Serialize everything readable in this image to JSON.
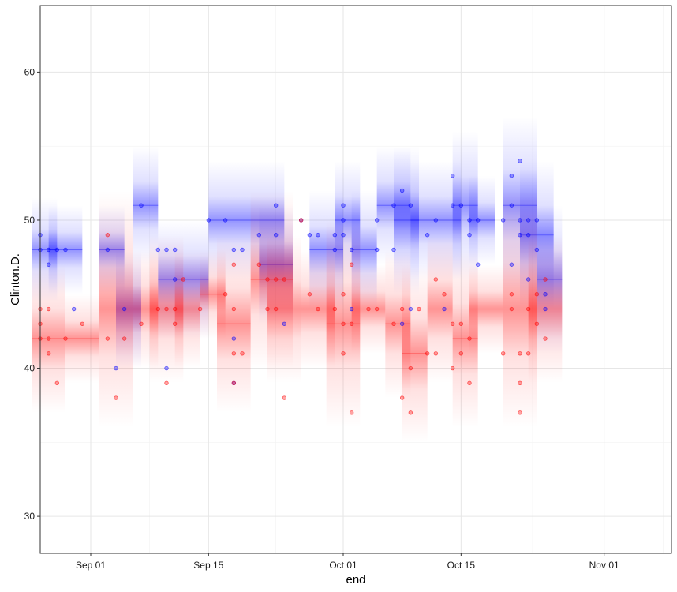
{
  "chart_data": {
    "type": "scatter",
    "title": "",
    "xlabel": "end",
    "ylabel": "Clinton.D.",
    "x_ticks": [
      "Sep 01",
      "Sep 15",
      "Oct 01",
      "Oct 15",
      "Nov 01"
    ],
    "x_tick_dates": [
      "2016-09-01",
      "2016-09-15",
      "2016-10-01",
      "2016-10-15",
      "2016-11-01"
    ],
    "xlim": [
      "2016-08-26",
      "2016-11-09"
    ],
    "y_ticks": [
      30,
      40,
      50,
      60
    ],
    "ylim": [
      27.5,
      64.5
    ],
    "grid": true,
    "legend": "none",
    "colors": {
      "blue": "#0000ff",
      "red": "#ff0000",
      "panel_border": "#333333",
      "grid_major": "#e6e6e6",
      "grid_minor": "#f2f2f2"
    },
    "series": [
      {
        "color": "#0000ff",
        "points": [
          [
            "2016-08-26",
            49
          ],
          [
            "2016-08-26",
            48
          ],
          [
            "2016-08-27",
            48
          ],
          [
            "2016-08-27",
            47
          ],
          [
            "2016-08-28",
            48
          ],
          [
            "2016-08-29",
            48
          ],
          [
            "2016-08-30",
            44
          ],
          [
            "2016-09-03",
            48
          ],
          [
            "2016-09-04",
            40
          ],
          [
            "2016-09-05",
            44
          ],
          [
            "2016-09-07",
            51
          ],
          [
            "2016-09-09",
            48
          ],
          [
            "2016-09-10",
            40
          ],
          [
            "2016-09-10",
            48
          ],
          [
            "2016-09-11",
            46
          ],
          [
            "2016-09-11",
            48
          ],
          [
            "2016-09-15",
            50
          ],
          [
            "2016-09-17",
            50
          ],
          [
            "2016-09-18",
            39
          ],
          [
            "2016-09-18",
            42
          ],
          [
            "2016-09-18",
            48
          ],
          [
            "2016-09-19",
            48
          ],
          [
            "2016-09-21",
            49
          ],
          [
            "2016-09-23",
            51
          ],
          [
            "2016-09-23",
            49
          ],
          [
            "2016-09-24",
            43
          ],
          [
            "2016-09-26",
            50
          ],
          [
            "2016-09-27",
            49
          ],
          [
            "2016-09-28",
            49
          ],
          [
            "2016-09-30",
            48
          ],
          [
            "2016-09-30",
            49
          ],
          [
            "2016-10-01",
            50
          ],
          [
            "2016-10-01",
            49
          ],
          [
            "2016-10-01",
            51
          ],
          [
            "2016-10-02",
            44
          ],
          [
            "2016-10-02",
            48
          ],
          [
            "2016-10-05",
            50
          ],
          [
            "2016-10-05",
            48
          ],
          [
            "2016-10-07",
            48
          ],
          [
            "2016-10-07",
            51
          ],
          [
            "2016-10-08",
            52
          ],
          [
            "2016-10-08",
            43
          ],
          [
            "2016-10-09",
            51
          ],
          [
            "2016-10-09",
            44
          ],
          [
            "2016-10-11",
            49
          ],
          [
            "2016-10-12",
            50
          ],
          [
            "2016-10-13",
            44
          ],
          [
            "2016-10-14",
            53
          ],
          [
            "2016-10-14",
            51
          ],
          [
            "2016-10-15",
            51
          ],
          [
            "2016-10-16",
            50
          ],
          [
            "2016-10-16",
            49
          ],
          [
            "2016-10-17",
            47
          ],
          [
            "2016-10-17",
            50
          ],
          [
            "2016-10-20",
            50
          ],
          [
            "2016-10-21",
            53
          ],
          [
            "2016-10-21",
            51
          ],
          [
            "2016-10-22",
            54
          ],
          [
            "2016-10-22",
            49
          ],
          [
            "2016-10-22",
            50
          ],
          [
            "2016-10-23",
            50
          ],
          [
            "2016-10-23",
            49
          ],
          [
            "2016-10-24",
            48
          ],
          [
            "2016-10-24",
            50
          ],
          [
            "2016-10-25",
            45
          ],
          [
            "2016-10-25",
            44
          ],
          [
            "2016-10-23",
            46
          ],
          [
            "2016-10-21",
            47
          ]
        ],
        "bands": [
          [
            "2016-08-25",
            "2016-08-28",
            48,
            3.5
          ],
          [
            "2016-08-27",
            "2016-08-31",
            48,
            3
          ],
          [
            "2016-09-02",
            "2016-09-05",
            48,
            3
          ],
          [
            "2016-09-04",
            "2016-09-07",
            44,
            4
          ],
          [
            "2016-09-06",
            "2016-09-09",
            51,
            4
          ],
          [
            "2016-09-09",
            "2016-09-12",
            46,
            4
          ],
          [
            "2016-09-12",
            "2016-09-15",
            46,
            4
          ],
          [
            "2016-09-15",
            "2016-09-19",
            50,
            4
          ],
          [
            "2016-09-19",
            "2016-09-24",
            50,
            4
          ],
          [
            "2016-09-21",
            "2016-09-25",
            47,
            4
          ],
          [
            "2016-09-27",
            "2016-10-01",
            48,
            4
          ],
          [
            "2016-09-30",
            "2016-10-03",
            50,
            4
          ],
          [
            "2016-10-02",
            "2016-10-05",
            48,
            4
          ],
          [
            "2016-10-05",
            "2016-10-09",
            51,
            4
          ],
          [
            "2016-10-07",
            "2016-10-10",
            50,
            5
          ],
          [
            "2016-10-09",
            "2016-10-12",
            50,
            4
          ],
          [
            "2016-10-12",
            "2016-10-15",
            50,
            4
          ],
          [
            "2016-10-14",
            "2016-10-17",
            51,
            5
          ],
          [
            "2016-10-16",
            "2016-10-19",
            50,
            3
          ],
          [
            "2016-10-20",
            "2016-10-24",
            51,
            6
          ],
          [
            "2016-10-22",
            "2016-10-26",
            49,
            5
          ],
          [
            "2016-10-24",
            "2016-10-27",
            46,
            5
          ]
        ]
      },
      {
        "color": "#ff0000",
        "points": [
          [
            "2016-08-26",
            44
          ],
          [
            "2016-08-26",
            43
          ],
          [
            "2016-08-26",
            42
          ],
          [
            "2016-08-27",
            42
          ],
          [
            "2016-08-27",
            44
          ],
          [
            "2016-08-27",
            41
          ],
          [
            "2016-08-28",
            39
          ],
          [
            "2016-08-29",
            42
          ],
          [
            "2016-08-31",
            43
          ],
          [
            "2016-09-03",
            49
          ],
          [
            "2016-09-03",
            42
          ],
          [
            "2016-09-04",
            38
          ],
          [
            "2016-09-05",
            42
          ],
          [
            "2016-09-07",
            43
          ],
          [
            "2016-09-09",
            44
          ],
          [
            "2016-09-10",
            44
          ],
          [
            "2016-09-10",
            39
          ],
          [
            "2016-09-11",
            43
          ],
          [
            "2016-09-11",
            44
          ],
          [
            "2016-09-12",
            46
          ],
          [
            "2016-09-14",
            44
          ],
          [
            "2016-09-17",
            45
          ],
          [
            "2016-09-18",
            47
          ],
          [
            "2016-09-18",
            44
          ],
          [
            "2016-09-18",
            41
          ],
          [
            "2016-09-18",
            39
          ],
          [
            "2016-09-19",
            41
          ],
          [
            "2016-09-21",
            47
          ],
          [
            "2016-09-22",
            46
          ],
          [
            "2016-09-22",
            44
          ],
          [
            "2016-09-23",
            46
          ],
          [
            "2016-09-23",
            44
          ],
          [
            "2016-09-24",
            38
          ],
          [
            "2016-09-24",
            46
          ],
          [
            "2016-09-26",
            50
          ],
          [
            "2016-09-27",
            45
          ],
          [
            "2016-09-28",
            44
          ],
          [
            "2016-09-30",
            44
          ],
          [
            "2016-10-01",
            41
          ],
          [
            "2016-10-01",
            43
          ],
          [
            "2016-10-01",
            45
          ],
          [
            "2016-10-02",
            47
          ],
          [
            "2016-10-02",
            43
          ],
          [
            "2016-10-02",
            37
          ],
          [
            "2016-10-04",
            44
          ],
          [
            "2016-10-05",
            44
          ],
          [
            "2016-10-07",
            43
          ],
          [
            "2016-10-08",
            38
          ],
          [
            "2016-10-08",
            44
          ],
          [
            "2016-10-09",
            40
          ],
          [
            "2016-10-09",
            37
          ],
          [
            "2016-10-10",
            44
          ],
          [
            "2016-10-11",
            41
          ],
          [
            "2016-10-12",
            46
          ],
          [
            "2016-10-12",
            41
          ],
          [
            "2016-10-13",
            45
          ],
          [
            "2016-10-14",
            43
          ],
          [
            "2016-10-14",
            40
          ],
          [
            "2016-10-15",
            41
          ],
          [
            "2016-10-15",
            43
          ],
          [
            "2016-10-16",
            39
          ],
          [
            "2016-10-16",
            42
          ],
          [
            "2016-10-20",
            41
          ],
          [
            "2016-10-21",
            45
          ],
          [
            "2016-10-21",
            44
          ],
          [
            "2016-10-22",
            41
          ],
          [
            "2016-10-22",
            39
          ],
          [
            "2016-10-22",
            37
          ],
          [
            "2016-10-23",
            41
          ],
          [
            "2016-10-24",
            45
          ],
          [
            "2016-10-24",
            43
          ],
          [
            "2016-10-25",
            46
          ],
          [
            "2016-10-25",
            42
          ],
          [
            "2016-10-23",
            44
          ]
        ],
        "bands": [
          [
            "2016-08-25",
            "2016-08-29",
            42,
            5
          ],
          [
            "2016-08-29",
            "2016-09-02",
            42,
            3
          ],
          [
            "2016-09-02",
            "2016-09-06",
            44,
            8
          ],
          [
            "2016-09-06",
            "2016-09-09",
            44,
            4
          ],
          [
            "2016-09-08",
            "2016-09-12",
            44,
            5
          ],
          [
            "2016-09-11",
            "2016-09-14",
            44,
            4
          ],
          [
            "2016-09-14",
            "2016-09-17",
            45,
            3
          ],
          [
            "2016-09-16",
            "2016-09-20",
            43,
            6
          ],
          [
            "2016-09-20",
            "2016-09-25",
            46,
            6
          ],
          [
            "2016-09-22",
            "2016-09-26",
            44,
            5
          ],
          [
            "2016-09-26",
            "2016-09-30",
            44,
            4
          ],
          [
            "2016-09-29",
            "2016-10-03",
            43,
            7
          ],
          [
            "2016-10-02",
            "2016-10-06",
            44,
            3
          ],
          [
            "2016-10-06",
            "2016-10-09",
            43,
            5
          ],
          [
            "2016-10-08",
            "2016-10-11",
            41,
            6
          ],
          [
            "2016-10-11",
            "2016-10-14",
            44,
            5
          ],
          [
            "2016-10-14",
            "2016-10-17",
            42,
            6
          ],
          [
            "2016-10-16",
            "2016-10-20",
            44,
            3
          ],
          [
            "2016-10-20",
            "2016-10-24",
            44,
            8
          ],
          [
            "2016-10-23",
            "2016-10-27",
            44,
            5
          ]
        ]
      }
    ]
  }
}
